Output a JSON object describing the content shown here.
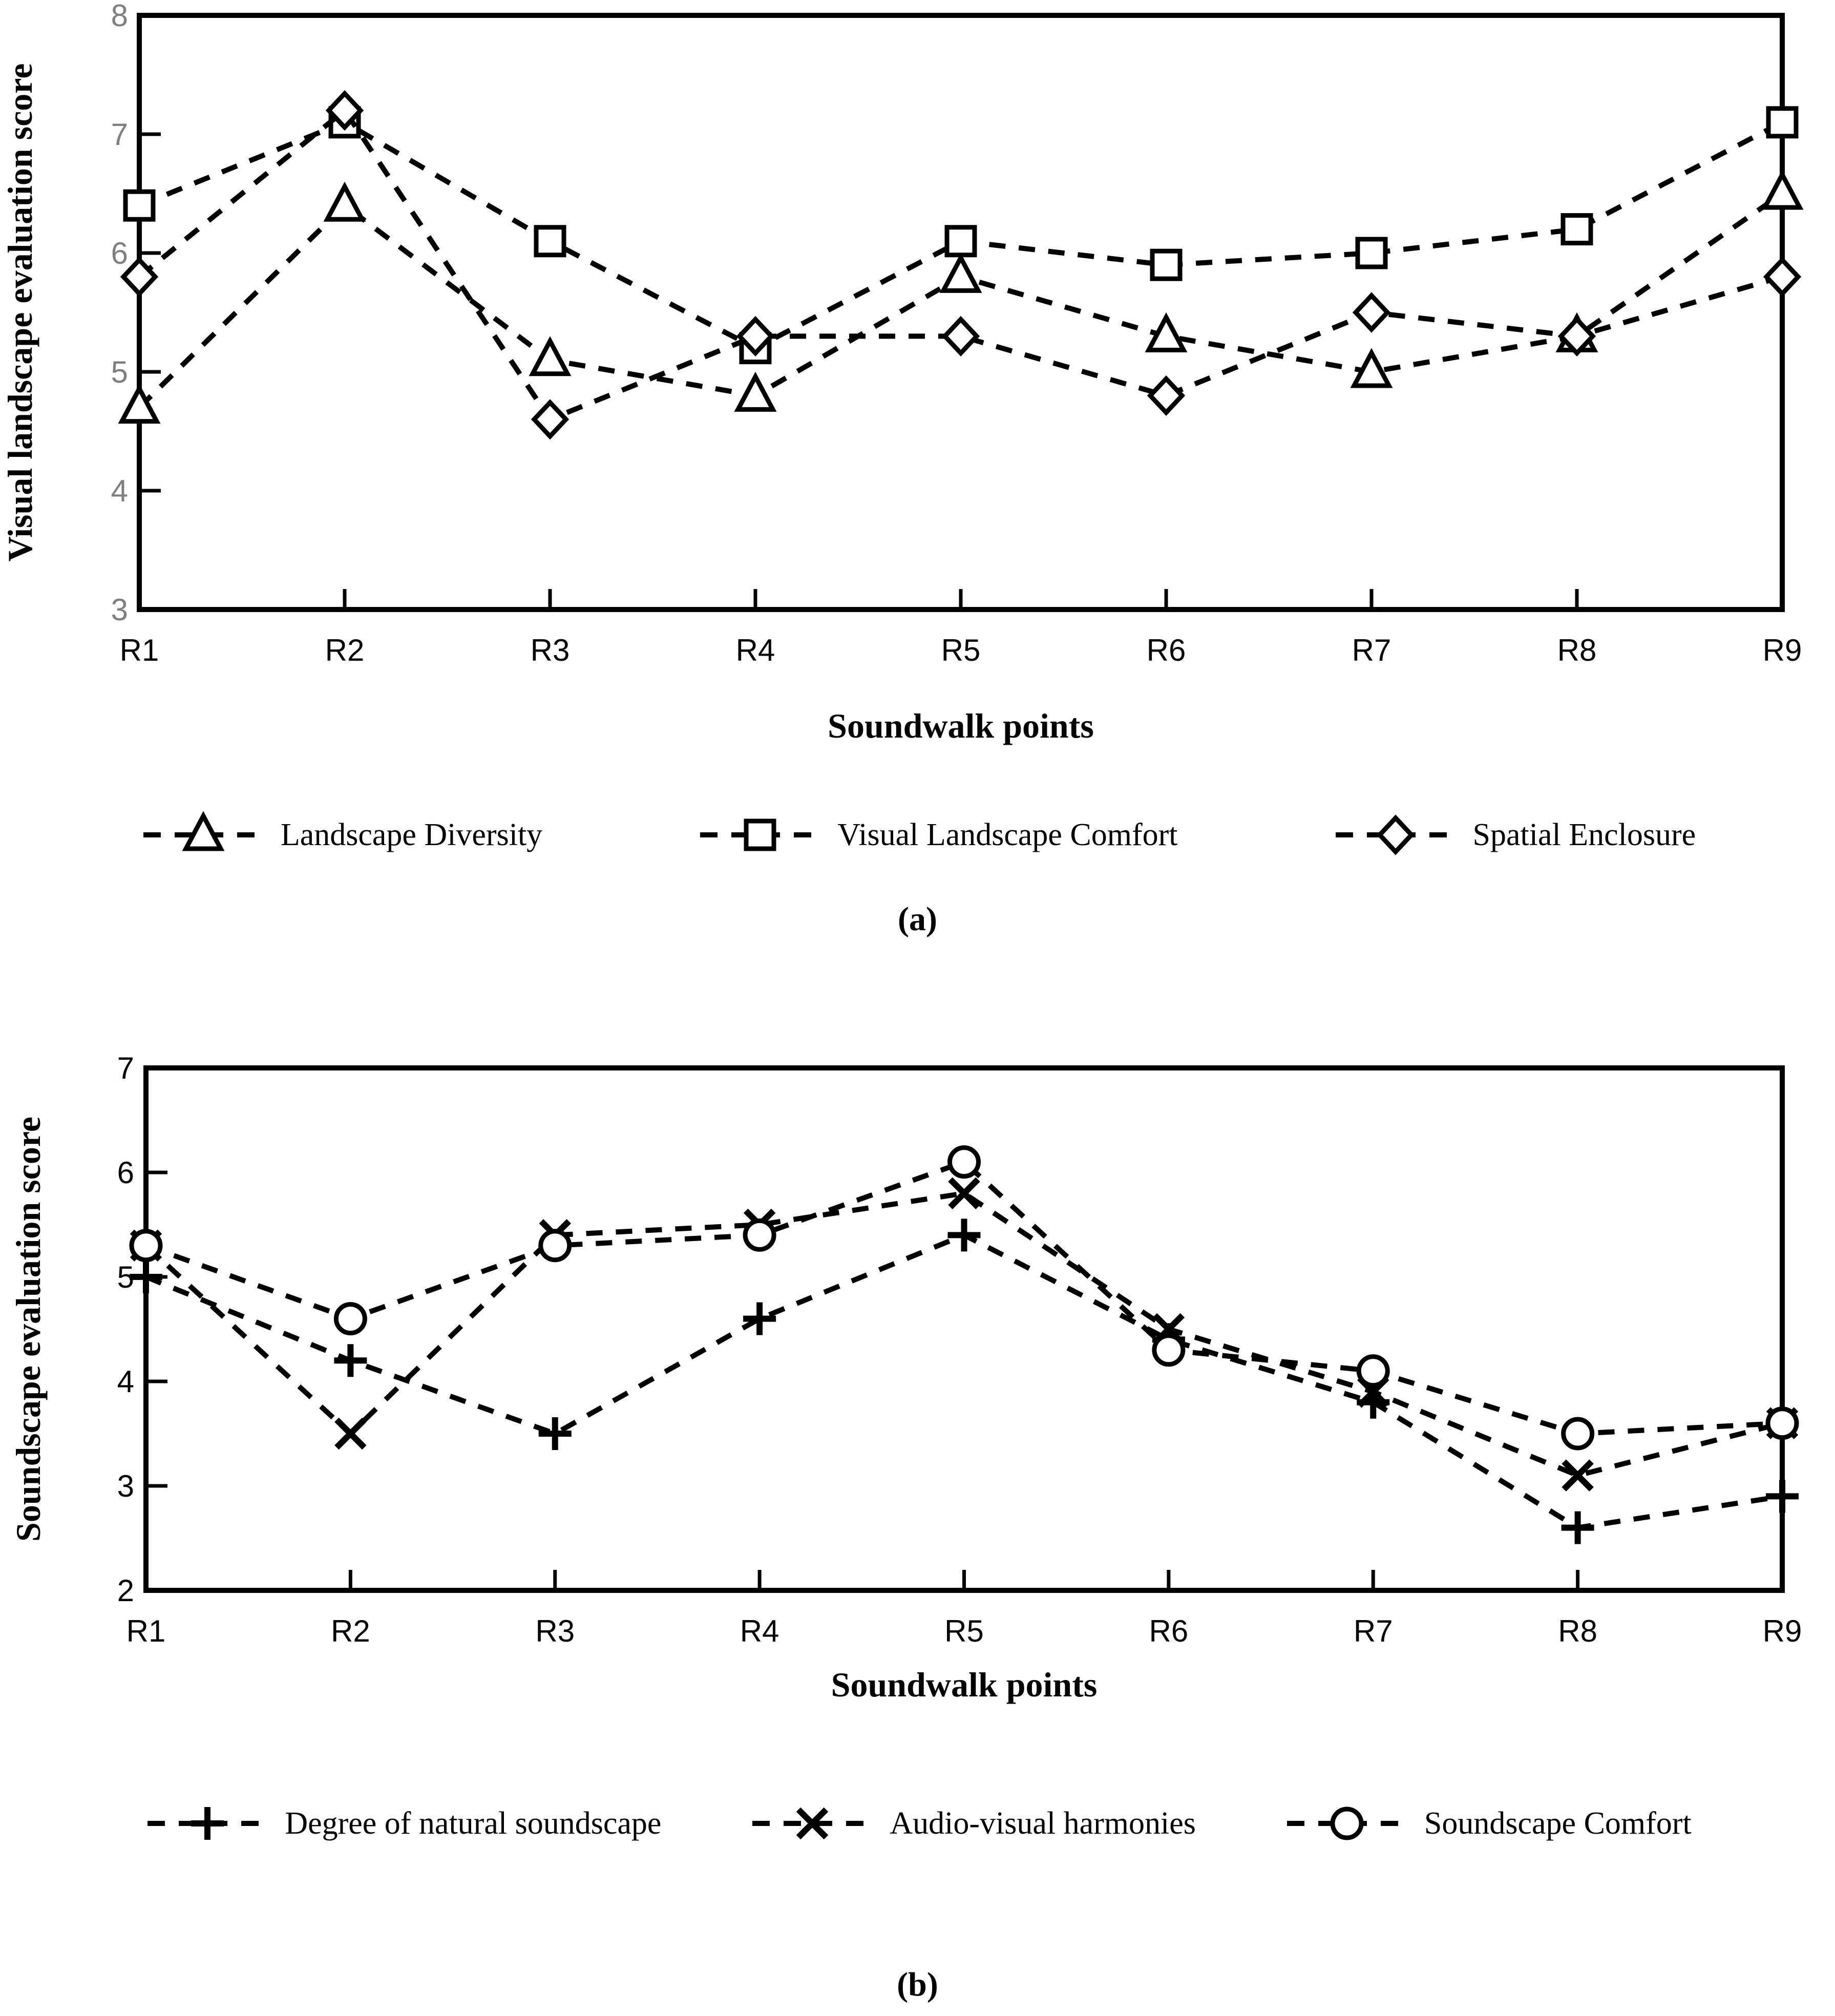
{
  "chart_data": [
    {
      "type": "line",
      "panel": "a",
      "caption": "(a)",
      "xlabel": "Soundwalk points",
      "ylabel": "Visual landscape evaluation score",
      "categories": [
        "R1",
        "R2",
        "R3",
        "R4",
        "R5",
        "R6",
        "R7",
        "R8",
        "R9"
      ],
      "ylim": [
        3,
        8
      ],
      "yticks": [
        3,
        4,
        5,
        6,
        7,
        8
      ],
      "grid": false,
      "line_style": "dashed",
      "line_color": "#000000",
      "legend_position": "bottom",
      "ytick_label_color": "#7f7f7f",
      "xtick_label_color": "#000000",
      "series": [
        {
          "name": "Landscape Diversity",
          "marker": "triangle",
          "values": [
            4.7,
            6.4,
            5.1,
            4.8,
            5.8,
            5.3,
            5.0,
            5.3,
            6.5
          ]
        },
        {
          "name": "Visual Landscape Comfort",
          "marker": "square",
          "values": [
            6.4,
            7.1,
            6.1,
            5.2,
            6.1,
            5.9,
            6.0,
            6.2,
            7.1
          ]
        },
        {
          "name": "Spatial Enclosure",
          "marker": "diamond",
          "values": [
            5.8,
            7.2,
            4.6,
            5.3,
            5.3,
            4.8,
            5.5,
            5.3,
            5.8
          ]
        }
      ]
    },
    {
      "type": "line",
      "panel": "b",
      "caption": "(b)",
      "xlabel": "Soundwalk points",
      "ylabel": "Soundscape evaluation score",
      "categories": [
        "R1",
        "R2",
        "R3",
        "R4",
        "R5",
        "R6",
        "R7",
        "R8",
        "R9"
      ],
      "ylim": [
        2,
        7
      ],
      "yticks": [
        2,
        3,
        4,
        5,
        6,
        7
      ],
      "grid": false,
      "line_style": "dashed",
      "line_color": "#000000",
      "legend_position": "bottom",
      "ytick_label_color": "#000000",
      "xtick_label_color": "#000000",
      "series": [
        {
          "name": "Degree of natural soundscape",
          "marker": "plus",
          "values": [
            5.0,
            4.2,
            3.5,
            4.6,
            5.4,
            4.4,
            3.8,
            2.6,
            2.9
          ]
        },
        {
          "name": "Audio-visual harmonies",
          "marker": "x",
          "values": [
            5.3,
            3.5,
            5.4,
            5.5,
            5.8,
            4.5,
            3.9,
            3.1,
            3.6
          ]
        },
        {
          "name": "Soundscape Comfort",
          "marker": "circle",
          "values": [
            5.3,
            4.6,
            5.3,
            5.4,
            6.1,
            4.3,
            4.1,
            3.5,
            3.6
          ]
        }
      ]
    }
  ]
}
